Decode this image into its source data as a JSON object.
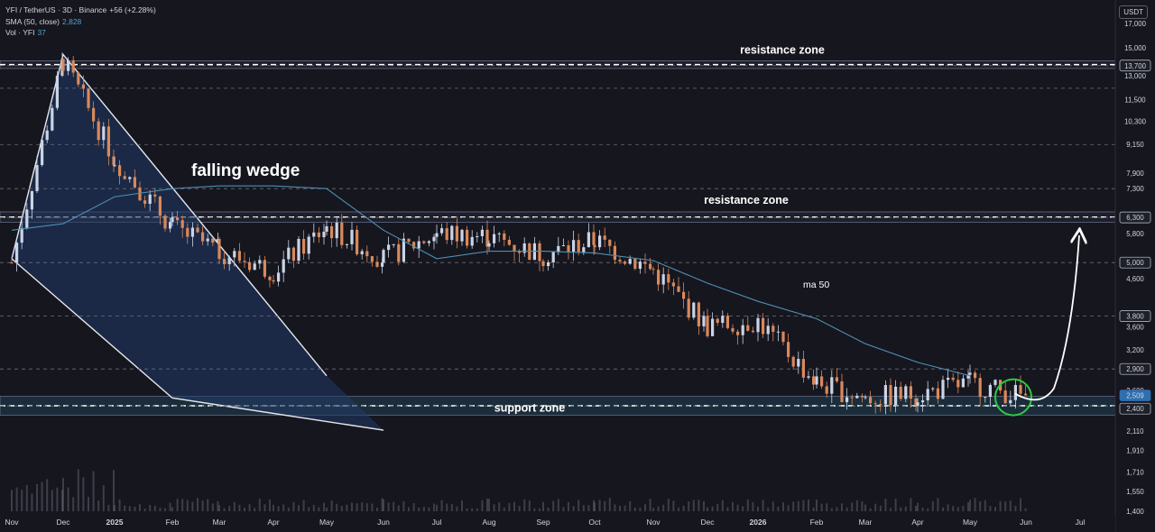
{
  "legend": {
    "symbol_line": "YFI / TetherUS · 3D · Binance",
    "change": "+56 (+2.28%)",
    "sma_label": "SMA (50, close)",
    "sma_value": "2,828",
    "vol_label": "Vol · YFI",
    "vol_value": "37"
  },
  "currency": "USDT",
  "chart_data": {
    "type": "candlestick",
    "x_axis_labels": [
      "Nov",
      "Dec",
      "2025",
      "Feb",
      "Mar",
      "Apr",
      "May",
      "Jun",
      "Jul",
      "Aug",
      "Sep",
      "Oct",
      "Nov",
      "Dec",
      "2026",
      "Feb",
      "Mar",
      "Apr",
      "May",
      "Jun",
      "Jul"
    ],
    "y_axis_labels": [
      "17,000",
      "15,000",
      "13,700",
      "13,000",
      "11,500",
      "10,300",
      "9,150",
      "7,900",
      "7,300",
      "6,300",
      "5,800",
      "5,000",
      "4,600",
      "3,800",
      "3,600",
      "3,200",
      "2,900",
      "2,600",
      "2,509",
      "2,400",
      "2,110",
      "1,910",
      "1,710",
      "1,550",
      "1,400"
    ],
    "y_scale": "log",
    "highlighted_levels": [
      "13,700",
      "6,300",
      "5,000",
      "3,800",
      "2,900",
      "2,509",
      "2,400"
    ],
    "dashed_levels": [
      13700,
      12200,
      9150,
      7300,
      6300,
      5000,
      3800,
      2900,
      2400
    ],
    "current_price": "2,509",
    "zones": [
      {
        "label": "resistance zone",
        "low": 13500,
        "high": 14050
      },
      {
        "label": "resistance zone",
        "low": 6150,
        "high": 6480
      },
      {
        "label": "support zone",
        "low": 2290,
        "high": 2520
      }
    ],
    "pattern_label": "falling wedge",
    "ma_label": "ma 50",
    "ma_points": [
      [
        "Nov",
        5900
      ],
      [
        "Dec",
        6100
      ],
      [
        "2025",
        7000
      ],
      [
        "Feb",
        7300
      ],
      [
        "Mar",
        7400
      ],
      [
        "Apr",
        7400
      ],
      [
        "May",
        7300
      ],
      [
        "Jun",
        5900
      ],
      [
        "Jul",
        5100
      ],
      [
        "Aug",
        5300
      ],
      [
        "Sep",
        5300
      ],
      [
        "Oct",
        5250
      ],
      [
        "Nov",
        5050
      ],
      [
        "Dec",
        4500
      ],
      [
        "2026",
        4100
      ],
      [
        "Feb",
        3750
      ],
      [
        "Mar",
        3300
      ],
      [
        "Apr",
        3000
      ],
      [
        "May",
        2800
      ]
    ],
    "price_path": [
      [
        "Nov",
        5000
      ],
      [
        "Dec",
        14000
      ],
      [
        "2025",
        8500
      ],
      [
        "Feb",
        6000
      ],
      [
        "Mar",
        5300
      ],
      [
        "Apr",
        4800
      ],
      [
        "May",
        6000
      ],
      [
        "Jun",
        5100
      ],
      [
        "Jul",
        5800
      ],
      [
        "Aug",
        5700
      ],
      [
        "Sep",
        5200
      ],
      [
        "Oct",
        5600
      ],
      [
        "Nov",
        4800
      ],
      [
        "Dec",
        3600
      ],
      [
        "2026",
        3700
      ],
      [
        "Feb",
        2700
      ],
      [
        "Mar",
        2500
      ],
      [
        "Apr",
        2550
      ],
      [
        "May",
        2700
      ],
      [
        "Jun",
        2509
      ]
    ],
    "wedge_upper": [
      [
        "Nov",
        5100
      ],
      [
        "Dec",
        14500
      ],
      [
        "May",
        2800
      ]
    ],
    "wedge_lower": [
      [
        "Nov",
        5100
      ],
      [
        "Feb",
        2500
      ],
      [
        "Jun",
        2120
      ]
    ],
    "projection_target": "6,300",
    "grid": false,
    "legend_position": "top-left"
  }
}
